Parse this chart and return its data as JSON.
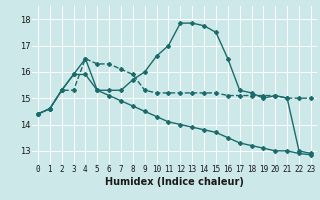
{
  "title": "",
  "xlabel": "Humidex (Indice chaleur)",
  "background_color": "#cde8e8",
  "grid_color": "#ffffff",
  "line_color": "#1a6b6b",
  "xlim": [
    -0.5,
    23.5
  ],
  "ylim": [
    12.5,
    18.5
  ],
  "yticks": [
    13,
    14,
    15,
    16,
    17,
    18
  ],
  "xticks": [
    0,
    1,
    2,
    3,
    4,
    5,
    6,
    7,
    8,
    9,
    10,
    11,
    12,
    13,
    14,
    15,
    16,
    17,
    18,
    19,
    20,
    21,
    22,
    23
  ],
  "series": [
    {
      "x": [
        0,
        1,
        2,
        3,
        4,
        5,
        6,
        7,
        8,
        9,
        10,
        11,
        12,
        13,
        14,
        15,
        16,
        17,
        18,
        19,
        20,
        21,
        22,
        23
      ],
      "y": [
        14.4,
        14.6,
        15.3,
        15.3,
        16.5,
        16.3,
        16.3,
        16.1,
        15.9,
        15.3,
        15.2,
        15.2,
        15.2,
        15.2,
        15.2,
        15.2,
        15.1,
        15.1,
        15.1,
        15.1,
        15.1,
        15.0,
        15.0,
        15.0
      ],
      "marker": "D",
      "markersize": 2.0,
      "linewidth": 1.0,
      "linestyle": "--"
    },
    {
      "x": [
        0,
        1,
        2,
        3,
        4,
        5,
        6,
        7,
        8,
        9,
        10,
        11,
        12,
        13,
        14,
        15,
        16,
        17,
        18,
        19,
        20,
        21,
        22,
        23
      ],
      "y": [
        14.4,
        14.6,
        15.3,
        15.9,
        16.5,
        15.3,
        15.3,
        15.3,
        15.7,
        16.0,
        16.6,
        17.0,
        17.85,
        17.85,
        17.75,
        17.5,
        16.5,
        15.3,
        15.2,
        15.0,
        15.1,
        15.0,
        13.0,
        12.9
      ],
      "marker": "D",
      "markersize": 2.0,
      "linewidth": 1.0,
      "linestyle": "-"
    },
    {
      "x": [
        0,
        1,
        2,
        3,
        4,
        5,
        6,
        7,
        8,
        9,
        10,
        11,
        12,
        13,
        14,
        15,
        16,
        17,
        18,
        19,
        20,
        21,
        22,
        23
      ],
      "y": [
        14.4,
        14.6,
        15.3,
        15.9,
        15.9,
        15.3,
        15.1,
        14.9,
        14.7,
        14.5,
        14.3,
        14.1,
        14.0,
        13.9,
        13.8,
        13.7,
        13.5,
        13.3,
        13.2,
        13.1,
        13.0,
        13.0,
        12.9,
        12.85
      ],
      "marker": "D",
      "markersize": 2.0,
      "linewidth": 1.0,
      "linestyle": "-"
    }
  ]
}
